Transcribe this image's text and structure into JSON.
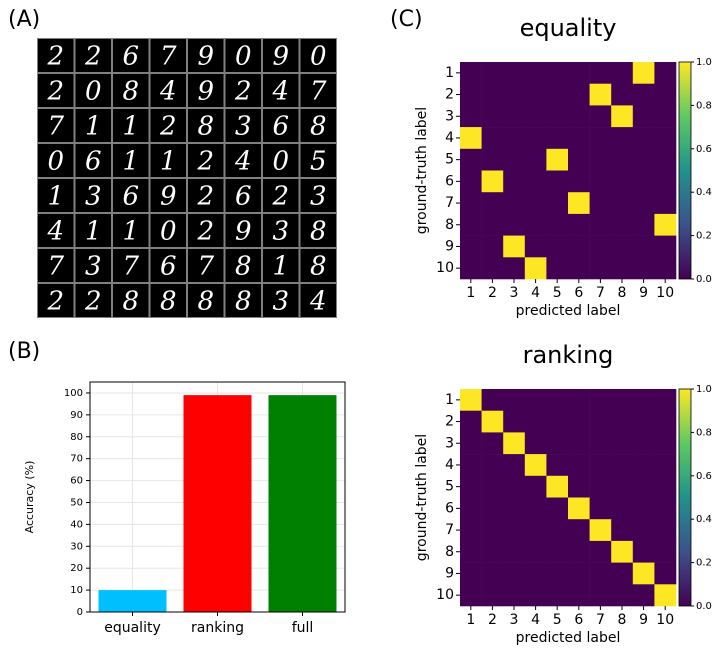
{
  "panel_labels": [
    "(A)",
    "(B)",
    "(C)"
  ],
  "digit_grid": [
    [
      2,
      2,
      6,
      7,
      9,
      0,
      9,
      0
    ],
    [
      2,
      0,
      8,
      4,
      9,
      2,
      4,
      7
    ],
    [
      7,
      1,
      1,
      2,
      8,
      3,
      6,
      8
    ],
    [
      0,
      6,
      1,
      1,
      2,
      4,
      0,
      5
    ],
    [
      1,
      3,
      6,
      9,
      2,
      6,
      2,
      3
    ],
    [
      4,
      1,
      1,
      0,
      2,
      9,
      3,
      8
    ],
    [
      7,
      3,
      7,
      6,
      7,
      8,
      1,
      8
    ],
    [
      2,
      2,
      8,
      8,
      8,
      8,
      3,
      4
    ]
  ],
  "chart_data": [
    {
      "type": "bar",
      "ylabel": "Accuracy (%)",
      "categories": [
        "equality",
        "ranking",
        "full"
      ],
      "values": [
        10,
        99,
        99
      ],
      "colors": [
        "#00bfff",
        "#ff0000",
        "#008000"
      ],
      "ylim": [
        0,
        105
      ],
      "yticks": [
        0,
        10,
        20,
        30,
        40,
        50,
        60,
        70,
        80,
        90,
        100
      ],
      "grid": true
    },
    {
      "type": "heatmap",
      "title": "equality",
      "xlabel": "predicted label",
      "ylabel": "ground-truth label",
      "x": [
        1,
        2,
        3,
        4,
        5,
        6,
        7,
        8,
        9,
        10
      ],
      "y": [
        1,
        2,
        3,
        4,
        5,
        6,
        7,
        8,
        9,
        10
      ],
      "values": [
        [
          0,
          0,
          0,
          0,
          0,
          0,
          0,
          0,
          1,
          0
        ],
        [
          0,
          0,
          0,
          0,
          0,
          0,
          1,
          0,
          0,
          0
        ],
        [
          0,
          0,
          0,
          0,
          0,
          0,
          0,
          1,
          0,
          0
        ],
        [
          1,
          0,
          0,
          0,
          0,
          0,
          0,
          0,
          0,
          0
        ],
        [
          0,
          0,
          0,
          0,
          1,
          0,
          0,
          0,
          0,
          0
        ],
        [
          0,
          1,
          0,
          0,
          0,
          0,
          0,
          0,
          0,
          0
        ],
        [
          0,
          0,
          0,
          0,
          0,
          1,
          0,
          0,
          0,
          0
        ],
        [
          0,
          0,
          0,
          0,
          0,
          0,
          0,
          0,
          0,
          1
        ],
        [
          0,
          0,
          1,
          0,
          0,
          0,
          0,
          0,
          0,
          0
        ],
        [
          0,
          0,
          0,
          1,
          0,
          0,
          0,
          0,
          0,
          0
        ]
      ],
      "clim": [
        0,
        1
      ],
      "cticks": [
        {
          "value": 0,
          "label": "0.0"
        },
        {
          "value": 0.2,
          "label": "0.2"
        },
        {
          "value": 0.4,
          "label": "0.4"
        },
        {
          "value": 0.6,
          "label": "0.6"
        },
        {
          "value": 0.8,
          "label": "0.8"
        },
        {
          "value": 1,
          "label": "1.0"
        }
      ],
      "colormap": [
        "#440154",
        "#3b528b",
        "#21918c",
        "#5ec962",
        "#fde725"
      ]
    },
    {
      "type": "heatmap",
      "title": "ranking",
      "xlabel": "predicted label",
      "ylabel": "ground-truth label",
      "x": [
        1,
        2,
        3,
        4,
        5,
        6,
        7,
        8,
        9,
        10
      ],
      "y": [
        1,
        2,
        3,
        4,
        5,
        6,
        7,
        8,
        9,
        10
      ],
      "values": [
        [
          1,
          0,
          0,
          0,
          0,
          0,
          0,
          0,
          0,
          0
        ],
        [
          0,
          1,
          0,
          0,
          0,
          0,
          0,
          0,
          0,
          0
        ],
        [
          0,
          0,
          1,
          0,
          0,
          0,
          0,
          0,
          0,
          0
        ],
        [
          0,
          0,
          0,
          1,
          0,
          0,
          0,
          0,
          0,
          0
        ],
        [
          0,
          0,
          0,
          0,
          1,
          0,
          0,
          0,
          0,
          0
        ],
        [
          0,
          0,
          0,
          0,
          0,
          1,
          0,
          0,
          0,
          0
        ],
        [
          0,
          0,
          0,
          0,
          0,
          0,
          1,
          0,
          0,
          0
        ],
        [
          0,
          0,
          0,
          0,
          0,
          0,
          0,
          1,
          0,
          0
        ],
        [
          0,
          0,
          0,
          0,
          0,
          0,
          0,
          0,
          1,
          0
        ],
        [
          0,
          0,
          0,
          0,
          0,
          0,
          0,
          0,
          0,
          1
        ]
      ],
      "clim": [
        0,
        1
      ],
      "cticks": [
        {
          "value": 0,
          "label": "0.0"
        },
        {
          "value": 0.2,
          "label": "0.2"
        },
        {
          "value": 0.4,
          "label": "0.4"
        },
        {
          "value": 0.6,
          "label": "0.6"
        },
        {
          "value": 0.8,
          "label": "0.8"
        },
        {
          "value": 1,
          "label": "1.0"
        }
      ],
      "colormap": [
        "#440154",
        "#3b528b",
        "#21918c",
        "#5ec962",
        "#fde725"
      ]
    }
  ]
}
